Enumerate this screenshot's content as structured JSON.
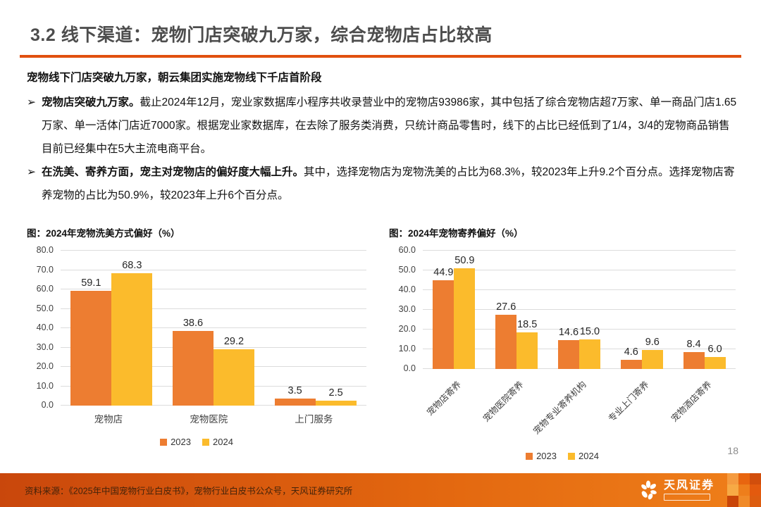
{
  "slide": {
    "title": "3.2 线下渠道：宠物门店突破九万家，综合宠物店占比较高",
    "page_number": "18"
  },
  "colors": {
    "accent_rule": "#E1500F",
    "series_2023": "#ED7D31",
    "series_2024": "#FBBB2C",
    "gridline": "#DCDCDC",
    "footer_grad_left": "#C9470C",
    "footer_grad_mid": "#E2660F",
    "footer_grad_right": "#EF7F1A"
  },
  "body": {
    "heading": "宠物线下门店突破九万家，朝云集团实施宠物线下千店首阶段",
    "bullet_marker": "➢",
    "bullets": [
      {
        "bold": "宠物店突破九万家。",
        "rest": "截止2024年12月，宠业家数据库小程序共收录营业中的宠物店93986家，其中包括了综合宠物店超7万家、单一商品门店1.65万家、单一活体门店近7000家。根据宠业家数据库，在去除了服务类消费，只统计商品零售时，线下的占比已经低到了1/4，3/4的宠物商品销售目前已经集中在5大主流电商平台。"
      },
      {
        "bold": "在洗美、寄养方面，宠主对宠物店的偏好度大幅上升。",
        "rest": "其中，选择宠物店为宠物洗美的占比为68.3%，较2023年上升9.2个百分点。选择宠物店寄养宠物的占比为50.9%，较2023年上升6个百分点。"
      }
    ]
  },
  "chart_data": [
    {
      "type": "bar",
      "title": "图：2024年宠物洗美方式偏好（%）",
      "categories": [
        "宠物店",
        "宠物医院",
        "上门服务"
      ],
      "series": [
        {
          "name": "2023",
          "color": "#ED7D31",
          "values": [
            59.1,
            38.6,
            3.5
          ]
        },
        {
          "name": "2024",
          "color": "#FBBB2C",
          "values": [
            68.3,
            29.2,
            2.5
          ]
        }
      ],
      "xlabel": "",
      "ylabel": "",
      "ylim": [
        0,
        80
      ],
      "ytick_step": 10,
      "grid": true,
      "legend_position": "bottom",
      "xlabel_rotation": 0
    },
    {
      "type": "bar",
      "title": "图：2024年宠物寄养偏好（%）",
      "categories": [
        "宠物店寄养",
        "宠物医院寄养",
        "宠物专业寄养机构",
        "专业上门寄养",
        "宠物酒店寄养"
      ],
      "series": [
        {
          "name": "2023",
          "color": "#ED7D31",
          "values": [
            44.9,
            27.6,
            14.6,
            4.6,
            8.4
          ]
        },
        {
          "name": "2024",
          "color": "#FBBB2C",
          "values": [
            50.9,
            18.5,
            15.0,
            9.6,
            6.0
          ]
        }
      ],
      "xlabel": "",
      "ylabel": "",
      "ylim": [
        0,
        60
      ],
      "ytick_step": 10,
      "grid": true,
      "legend_position": "bottom",
      "xlabel_rotation": 45
    }
  ],
  "footer": {
    "source": "资料来源：《2025年中国宠物行业白皮书》，宠物行业白皮书公众号，天风证券研究所",
    "logo_text": "天风证券",
    "mosaic": [
      "#F59B40",
      "#E8650F",
      "#D14E0C",
      "#F7AA45",
      "#EE7E1B",
      "#E35A0E",
      "#C94508",
      "#F08A28",
      "#DD5D10"
    ]
  }
}
